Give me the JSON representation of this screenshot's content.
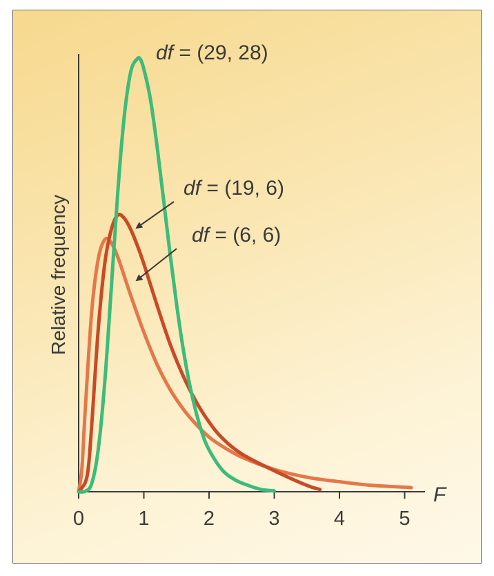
{
  "chart_data": {
    "type": "line",
    "title": "",
    "xlabel": "F",
    "ylabel": "Relative frequency",
    "xlim": [
      0,
      5.2
    ],
    "ylim": [
      0,
      1.12
    ],
    "x_ticks": [
      "0",
      "1",
      "2",
      "3",
      "4",
      "5"
    ],
    "grid": false,
    "legend": "none",
    "series": [
      {
        "name": "df = (29, 28)",
        "df_num": "29",
        "df_den": "28",
        "color": "#3dbb7a",
        "points": [
          [
            0,
            0
          ],
          [
            0.1,
            0.001
          ],
          [
            0.2,
            0.018
          ],
          [
            0.3,
            0.092
          ],
          [
            0.4,
            0.24
          ],
          [
            0.5,
            0.446
          ],
          [
            0.6,
            0.657
          ],
          [
            0.7,
            0.824
          ],
          [
            0.8,
            0.922
          ],
          [
            0.9,
            0.95
          ],
          [
            0.95,
            0.948
          ],
          [
            1.0,
            0.927
          ],
          [
            1.1,
            0.862
          ],
          [
            1.2,
            0.761
          ],
          [
            1.3,
            0.643
          ],
          [
            1.4,
            0.524
          ],
          [
            1.5,
            0.413
          ],
          [
            1.6,
            0.316
          ],
          [
            1.7,
            0.237
          ],
          [
            1.8,
            0.175
          ],
          [
            1.9,
            0.126
          ],
          [
            2.0,
            0.092
          ],
          [
            2.2,
            0.048
          ],
          [
            2.4,
            0.026
          ],
          [
            2.6,
            0.014
          ],
          [
            2.8,
            0.005
          ],
          [
            3.0,
            0.002
          ]
        ]
      },
      {
        "name": "df = (19, 6)",
        "df_num": "19",
        "df_den": "6",
        "color": "#c94a26",
        "points": [
          [
            0,
            0
          ],
          [
            0.1,
            0.02
          ],
          [
            0.15,
            0.055
          ],
          [
            0.2,
            0.145
          ],
          [
            0.3,
            0.355
          ],
          [
            0.4,
            0.5
          ],
          [
            0.5,
            0.575
          ],
          [
            0.6,
            0.607
          ],
          [
            0.7,
            0.6
          ],
          [
            0.8,
            0.575
          ],
          [
            0.9,
            0.54
          ],
          [
            1.0,
            0.5
          ],
          [
            1.2,
            0.41
          ],
          [
            1.4,
            0.325
          ],
          [
            1.6,
            0.255
          ],
          [
            1.8,
            0.198
          ],
          [
            2.0,
            0.153
          ],
          [
            2.2,
            0.118
          ],
          [
            2.5,
            0.083
          ],
          [
            3.0,
            0.046
          ],
          [
            3.5,
            0.014
          ],
          [
            3.7,
            0.005
          ]
        ]
      },
      {
        "name": "df = (6, 6)",
        "df_num": "6",
        "df_den": "6",
        "color": "#e4784a",
        "points": [
          [
            0,
            0
          ],
          [
            0.05,
            0.05
          ],
          [
            0.1,
            0.178
          ],
          [
            0.2,
            0.395
          ],
          [
            0.3,
            0.51
          ],
          [
            0.4,
            0.553
          ],
          [
            0.5,
            0.546
          ],
          [
            0.6,
            0.515
          ],
          [
            0.7,
            0.473
          ],
          [
            0.8,
            0.43
          ],
          [
            1.0,
            0.35
          ],
          [
            1.2,
            0.28
          ],
          [
            1.4,
            0.225
          ],
          [
            1.6,
            0.182
          ],
          [
            1.8,
            0.148
          ],
          [
            2.0,
            0.12
          ],
          [
            2.2,
            0.1
          ],
          [
            2.5,
            0.076
          ],
          [
            3.0,
            0.049
          ],
          [
            3.5,
            0.032
          ],
          [
            4.0,
            0.022
          ],
          [
            4.5,
            0.014
          ],
          [
            5.0,
            0.01
          ],
          [
            5.1,
            0.009
          ]
        ]
      }
    ]
  }
}
